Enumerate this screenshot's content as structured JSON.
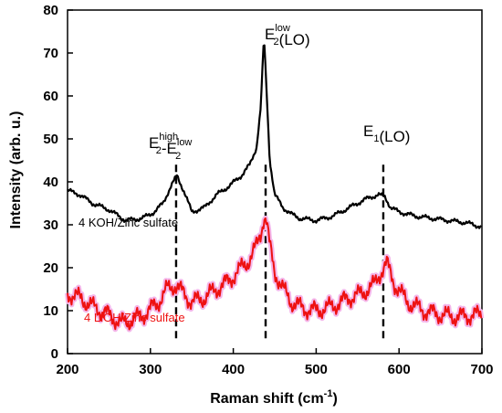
{
  "chart_data": {
    "type": "line",
    "title": "",
    "xlabel_main": "Raman shift (cm",
    "xlabel_sup": "-1",
    "xlabel_tail": ")",
    "ylabel": "Intensity (arb. u.)",
    "xlim": [
      200,
      700
    ],
    "ylim": [
      0,
      80
    ],
    "x_ticks": [
      200,
      300,
      400,
      500,
      600,
      700
    ],
    "y_ticks": [
      0,
      10,
      20,
      30,
      40,
      50,
      60,
      70,
      80
    ],
    "grid": false,
    "series": [
      {
        "name": "4 KOH/Zinc sulfate",
        "color": "#000000",
        "x": [
          200,
          215,
          230,
          250,
          270,
          290,
          305,
          315,
          325,
          332,
          340,
          350,
          365,
          380,
          395,
          410,
          420,
          428,
          433,
          437,
          440,
          444,
          450,
          460,
          470,
          480,
          500,
          520,
          540,
          560,
          575,
          583,
          590,
          600,
          620,
          640,
          660,
          680,
          700
        ],
        "y": [
          38,
          37,
          35,
          33.5,
          31,
          31.5,
          33,
          35,
          39,
          41.5,
          38,
          33,
          34,
          37,
          39,
          41.5,
          44,
          48,
          57,
          74,
          62,
          45,
          37,
          34,
          32.5,
          31.5,
          31,
          32,
          34,
          36,
          37,
          36.5,
          34,
          33,
          32,
          31.5,
          31,
          30.5,
          29.5
        ]
      },
      {
        "name": "4 LiOH/Zinc sulfate",
        "color": "#ee1111",
        "x": [
          200,
          215,
          230,
          250,
          265,
          280,
          295,
          310,
          320,
          330,
          340,
          350,
          365,
          380,
          395,
          410,
          420,
          428,
          433,
          437,
          440,
          444,
          450,
          460,
          470,
          485,
          500,
          520,
          540,
          555,
          570,
          578,
          585,
          595,
          610,
          630,
          650,
          670,
          690,
          700
        ],
        "y": [
          14,
          13,
          11,
          9,
          7,
          8,
          9.5,
          12,
          15,
          16,
          14,
          12,
          13,
          15,
          17,
          20,
          22,
          25,
          28,
          32,
          31,
          25,
          19,
          15,
          12,
          10.5,
          10,
          11,
          13,
          14,
          16,
          19,
          21,
          16,
          12,
          10,
          9,
          8.5,
          9,
          9
        ]
      }
    ],
    "series_labels": [
      {
        "text": "4 KOH/Zinc sulfate",
        "color": "#000000"
      },
      {
        "text": "4 LiOH/Zinc sulfate",
        "color": "#ee1111"
      }
    ],
    "annotations": [
      {
        "main1": "E",
        "sup1": "high",
        "sub1": "2",
        "dash": "-",
        "main2": "E",
        "sup2": "low",
        "sub2": "2",
        "tail": "",
        "line_x": 331
      },
      {
        "main1": "E",
        "sup1": "low",
        "sub1": "2",
        "dash": "",
        "main2": "",
        "sup2": "",
        "sub2": "",
        "tail": "(LO)",
        "line_x": 439
      },
      {
        "main1": "E",
        "sup1": "",
        "sub1": "1",
        "dash": "",
        "main2": "",
        "sup2": "",
        "sub2": "",
        "tail": "(LO)",
        "line_x": 581
      }
    ]
  }
}
